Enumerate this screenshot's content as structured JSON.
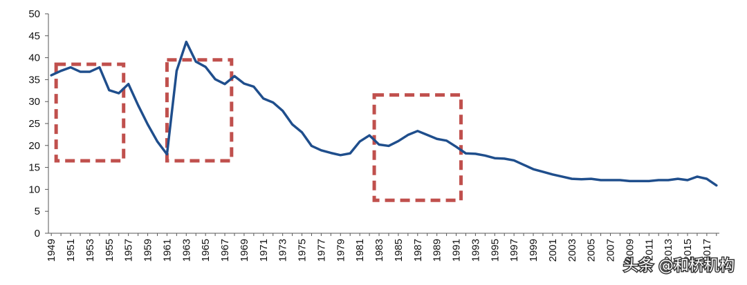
{
  "chart_data": {
    "type": "line",
    "title": "",
    "xlabel": "",
    "ylabel": "",
    "ylim": [
      0,
      50
    ],
    "yticks": [
      0,
      5,
      10,
      15,
      20,
      25,
      30,
      35,
      40,
      45,
      50
    ],
    "grid": false,
    "legend": "none",
    "x": [
      1949,
      1950,
      1951,
      1952,
      1953,
      1954,
      1955,
      1956,
      1957,
      1958,
      1959,
      1960,
      1961,
      1962,
      1963,
      1964,
      1965,
      1966,
      1967,
      1968,
      1969,
      1970,
      1971,
      1972,
      1973,
      1974,
      1975,
      1976,
      1977,
      1978,
      1979,
      1980,
      1981,
      1982,
      1983,
      1984,
      1985,
      1986,
      1987,
      1988,
      1989,
      1990,
      1991,
      1992,
      1993,
      1994,
      1995,
      1996,
      1997,
      1998,
      1999,
      2000,
      2001,
      2002,
      2003,
      2004,
      2005,
      2006,
      2007,
      2008,
      2009,
      2010,
      2011,
      2012,
      2013,
      2014,
      2015,
      2016,
      2017,
      2018
    ],
    "xtick_labels": [
      "1949",
      "1951",
      "1953",
      "1955",
      "1957",
      "1959",
      "1961",
      "1963",
      "1965",
      "1967",
      "1969",
      "1971",
      "1973",
      "1975",
      "1977",
      "1979",
      "1981",
      "1983",
      "1985",
      "1987",
      "1989",
      "1991",
      "1993",
      "1995",
      "1997",
      "1999",
      "2001",
      "2003",
      "2005",
      "2007",
      "2009",
      "2011",
      "2013",
      "2015",
      "2017"
    ],
    "series": [
      {
        "color": "#1f4e8c",
        "values": [
          36.0,
          37.0,
          37.8,
          36.8,
          36.8,
          37.8,
          32.6,
          31.9,
          34.0,
          29.2,
          24.8,
          20.9,
          18.0,
          37.0,
          43.6,
          39.1,
          37.9,
          35.1,
          34.0,
          35.8,
          34.1,
          33.4,
          30.7,
          29.8,
          27.9,
          24.8,
          23.0,
          19.9,
          18.9,
          18.3,
          17.8,
          18.2,
          20.9,
          22.3,
          20.2,
          19.9,
          21.0,
          22.4,
          23.3,
          22.4,
          21.5,
          21.1,
          19.7,
          18.2,
          18.1,
          17.7,
          17.1,
          17.0,
          16.6,
          15.6,
          14.6,
          14.0,
          13.4,
          12.9,
          12.4,
          12.3,
          12.4,
          12.1,
          12.1,
          12.1,
          11.9,
          11.9,
          11.9,
          12.1,
          12.1,
          12.4,
          12.1,
          12.9,
          12.4,
          10.9
        ]
      }
    ],
    "highlight_boxes": [
      {
        "x_from": 1949.5,
        "x_to": 1956.5,
        "y_from": 16.5,
        "y_to": 38.5
      },
      {
        "x_from": 1961.0,
        "x_to": 1967.7,
        "y_from": 16.5,
        "y_to": 39.5
      },
      {
        "x_from": 1982.5,
        "x_to": 1991.5,
        "y_from": 7.5,
        "y_to": 31.5
      }
    ],
    "colors": {
      "line": "#1f4e8c",
      "highlight": "#c0504d",
      "axis": "#555555"
    }
  },
  "watermark": {
    "text": "头条 @和桥机构"
  }
}
